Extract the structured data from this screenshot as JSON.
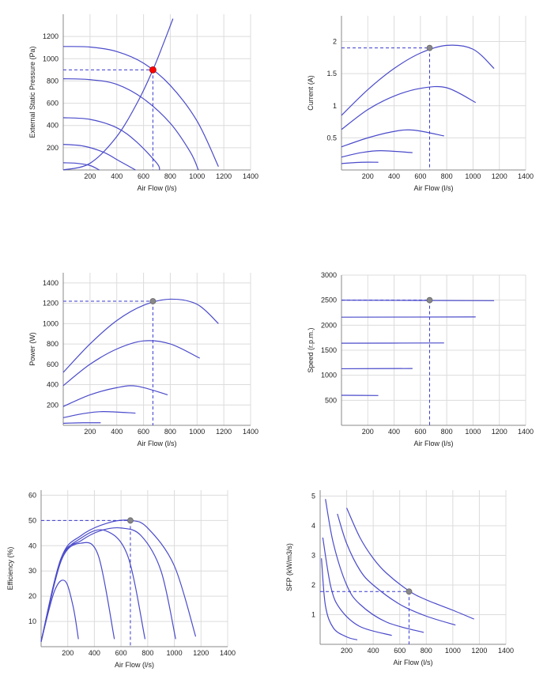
{
  "colors": {
    "curve": "#4a4acb",
    "guide": "#3a3ad0",
    "grid": "#dcdcdc",
    "operating_point": "#ff0000",
    "operating_point_dim": "#888888"
  },
  "chart_data": [
    {
      "id": "pressure",
      "type": "line",
      "xlabel": "Air Flow (l/s)",
      "ylabel": "External Static Pressure (Pa)",
      "xlim": [
        0,
        1400
      ],
      "ylim": [
        0,
        1400
      ],
      "xticks": [
        200,
        400,
        600,
        800,
        1000,
        1200,
        1400
      ],
      "yticks": [
        200,
        400,
        600,
        800,
        1000,
        1200
      ],
      "grid": true,
      "series": [
        {
          "points": [
            [
              0,
              1110
            ],
            [
              200,
              1105
            ],
            [
              400,
              1065
            ],
            [
              600,
              960
            ],
            [
              800,
              760
            ],
            [
              1000,
              440
            ],
            [
              1160,
              30
            ]
          ]
        },
        {
          "points": [
            [
              0,
              820
            ],
            [
              200,
              812
            ],
            [
              400,
              770
            ],
            [
              600,
              640
            ],
            [
              800,
              420
            ],
            [
              950,
              160
            ],
            [
              1010,
              0
            ]
          ]
        },
        {
          "points": [
            [
              0,
              470
            ],
            [
              200,
              455
            ],
            [
              400,
              380
            ],
            [
              550,
              250
            ],
            [
              700,
              60
            ],
            [
              720,
              0
            ]
          ]
        },
        {
          "points": [
            [
              0,
              230
            ],
            [
              150,
              215
            ],
            [
              300,
              160
            ],
            [
              420,
              80
            ],
            [
              540,
              0
            ]
          ]
        },
        {
          "points": [
            [
              0,
              65
            ],
            [
              100,
              60
            ],
            [
              200,
              40
            ],
            [
              270,
              0
            ]
          ]
        },
        {
          "points": [
            [
              0,
              0
            ],
            [
              200,
              60
            ],
            [
              400,
              300
            ],
            [
              560,
              620
            ],
            [
              670,
              900
            ],
            [
              750,
              1140
            ],
            [
              820,
              1360
            ]
          ]
        }
      ],
      "operating_point": {
        "x": 670,
        "y": 900,
        "color": "red"
      }
    },
    {
      "id": "current",
      "type": "line",
      "xlabel": "Air Flow (l/s)",
      "ylabel": "Current (A)",
      "xlim": [
        0,
        1400
      ],
      "ylim": [
        0,
        2.4
      ],
      "xticks": [
        200,
        400,
        600,
        800,
        1000,
        1200,
        1400
      ],
      "yticks": [
        0.5,
        1,
        1.5,
        2
      ],
      "grid": true,
      "series": [
        {
          "points": [
            [
              0,
              0.85
            ],
            [
              200,
              1.25
            ],
            [
              400,
              1.58
            ],
            [
              600,
              1.82
            ],
            [
              800,
              1.94
            ],
            [
              1000,
              1.88
            ],
            [
              1160,
              1.58
            ]
          ]
        },
        {
          "points": [
            [
              0,
              0.63
            ],
            [
              200,
              0.94
            ],
            [
              400,
              1.15
            ],
            [
              600,
              1.27
            ],
            [
              800,
              1.28
            ],
            [
              1020,
              1.05
            ]
          ]
        },
        {
          "points": [
            [
              0,
              0.36
            ],
            [
              200,
              0.5
            ],
            [
              400,
              0.6
            ],
            [
              550,
              0.62
            ],
            [
              780,
              0.53
            ]
          ]
        },
        {
          "points": [
            [
              0,
              0.2
            ],
            [
              150,
              0.27
            ],
            [
              300,
              0.3
            ],
            [
              540,
              0.27
            ]
          ]
        },
        {
          "points": [
            [
              0,
              0.1
            ],
            [
              150,
              0.12
            ],
            [
              280,
              0.12
            ]
          ]
        }
      ],
      "operating_point": {
        "x": 670,
        "y": 1.9,
        "color": "gray"
      }
    },
    {
      "id": "power",
      "type": "line",
      "xlabel": "Air Flow (l/s)",
      "ylabel": "Power (W)",
      "xlim": [
        0,
        1400
      ],
      "ylim": [
        0,
        1500
      ],
      "xticks": [
        200,
        400,
        600,
        800,
        1000,
        1200,
        1400
      ],
      "yticks": [
        200,
        400,
        600,
        800,
        1000,
        1200,
        1400
      ],
      "grid": true,
      "series": [
        {
          "points": [
            [
              0,
              520
            ],
            [
              200,
              800
            ],
            [
              400,
              1030
            ],
            [
              600,
              1180
            ],
            [
              800,
              1240
            ],
            [
              1000,
              1190
            ],
            [
              1160,
              1000
            ]
          ]
        },
        {
          "points": [
            [
              0,
              390
            ],
            [
              200,
              600
            ],
            [
              400,
              750
            ],
            [
              600,
              830
            ],
            [
              800,
              800
            ],
            [
              1020,
              660
            ]
          ]
        },
        {
          "points": [
            [
              0,
              185
            ],
            [
              200,
              300
            ],
            [
              400,
              370
            ],
            [
              550,
              385
            ],
            [
              780,
              300
            ]
          ]
        },
        {
          "points": [
            [
              0,
              75
            ],
            [
              150,
              115
            ],
            [
              300,
              135
            ],
            [
              540,
              120
            ]
          ]
        },
        {
          "points": [
            [
              0,
              20
            ],
            [
              150,
              25
            ],
            [
              280,
              25
            ]
          ]
        }
      ],
      "operating_point": {
        "x": 670,
        "y": 1220,
        "color": "gray"
      }
    },
    {
      "id": "speed",
      "type": "line",
      "xlabel": "Air Flow (l/s)",
      "ylabel": "Speed (r.p.m.)",
      "xlim": [
        0,
        1400
      ],
      "ylim": [
        0,
        3000
      ],
      "xticks": [
        200,
        400,
        600,
        800,
        1000,
        1200,
        1400
      ],
      "yticks": [
        500,
        1000,
        1500,
        2000,
        2500,
        3000
      ],
      "grid": true,
      "series": [
        {
          "points": [
            [
              0,
              2500
            ],
            [
              1160,
              2490
            ]
          ]
        },
        {
          "points": [
            [
              0,
              2160
            ],
            [
              1020,
              2165
            ]
          ]
        },
        {
          "points": [
            [
              0,
              1640
            ],
            [
              780,
              1645
            ]
          ]
        },
        {
          "points": [
            [
              0,
              1130
            ],
            [
              540,
              1135
            ]
          ]
        },
        {
          "points": [
            [
              0,
              600
            ],
            [
              280,
              595
            ]
          ]
        }
      ],
      "operating_point": {
        "x": 670,
        "y": 2500,
        "color": "gray"
      }
    },
    {
      "id": "efficiency",
      "type": "line",
      "xlabel": "Air Flow (l/s)",
      "ylabel": "Efficiency (%)",
      "xlim": [
        0,
        1400
      ],
      "ylim": [
        0,
        62
      ],
      "xticks": [
        200,
        400,
        600,
        800,
        1000,
        1200,
        1400
      ],
      "yticks": [
        10,
        20,
        30,
        40,
        50,
        60
      ],
      "grid": true,
      "series": [
        {
          "points": [
            [
              0,
              2
            ],
            [
              150,
              35
            ],
            [
              300,
              44
            ],
            [
              500,
              49
            ],
            [
              670,
              50
            ],
            [
              800,
              47
            ],
            [
              1000,
              32
            ],
            [
              1160,
              4
            ]
          ]
        },
        {
          "points": [
            [
              0,
              2
            ],
            [
              150,
              35
            ],
            [
              300,
              42
            ],
            [
              450,
              46
            ],
            [
              600,
              47
            ],
            [
              750,
              44
            ],
            [
              900,
              30
            ],
            [
              1010,
              3
            ]
          ]
        },
        {
          "points": [
            [
              0,
              2
            ],
            [
              150,
              34
            ],
            [
              300,
              43
            ],
            [
              480,
              46
            ],
            [
              650,
              36
            ],
            [
              780,
              3
            ]
          ]
        },
        {
          "points": [
            [
              0,
              2
            ],
            [
              150,
              34
            ],
            [
              300,
              41
            ],
            [
              430,
              36
            ],
            [
              550,
              3
            ]
          ]
        },
        {
          "points": [
            [
              0,
              2
            ],
            [
              100,
              22
            ],
            [
              180,
              26
            ],
            [
              240,
              16
            ],
            [
              280,
              3
            ]
          ]
        }
      ],
      "operating_point": {
        "x": 670,
        "y": 50,
        "color": "gray"
      }
    },
    {
      "id": "sfp",
      "type": "line",
      "xlabel": "Air Flow (l/s)",
      "ylabel": "SFP (kW/m3/s)",
      "xlim": [
        0,
        1400
      ],
      "ylim": [
        0,
        5.2
      ],
      "xticks": [
        200,
        400,
        600,
        800,
        1000,
        1200,
        1400
      ],
      "yticks": [
        1,
        2,
        3,
        4,
        5
      ],
      "grid": true,
      "series": [
        {
          "points": [
            [
              200,
              4.6
            ],
            [
              300,
              3.6
            ],
            [
              400,
              2.9
            ],
            [
              500,
              2.4
            ],
            [
              670,
              1.8
            ],
            [
              800,
              1.5
            ],
            [
              1000,
              1.15
            ],
            [
              1160,
              0.85
            ]
          ]
        },
        {
          "points": [
            [
              130,
              4.4
            ],
            [
              200,
              3.4
            ],
            [
              300,
              2.5
            ],
            [
              400,
              2.0
            ],
            [
              600,
              1.35
            ],
            [
              800,
              0.95
            ],
            [
              1020,
              0.65
            ]
          ]
        },
        {
          "points": [
            [
              40,
              4.9
            ],
            [
              100,
              3.4
            ],
            [
              200,
              2.0
            ],
            [
              300,
              1.35
            ],
            [
              500,
              0.75
            ],
            [
              780,
              0.4
            ]
          ]
        },
        {
          "points": [
            [
              20,
              3.6
            ],
            [
              80,
              1.95
            ],
            [
              150,
              1.2
            ],
            [
              300,
              0.6
            ],
            [
              540,
              0.3
            ]
          ]
        },
        {
          "points": [
            [
              10,
              2.9
            ],
            [
              40,
              1.3
            ],
            [
              100,
              0.55
            ],
            [
              200,
              0.25
            ],
            [
              280,
              0.15
            ]
          ]
        }
      ],
      "operating_point": {
        "x": 670,
        "y": 1.78,
        "color": "gray"
      }
    }
  ]
}
